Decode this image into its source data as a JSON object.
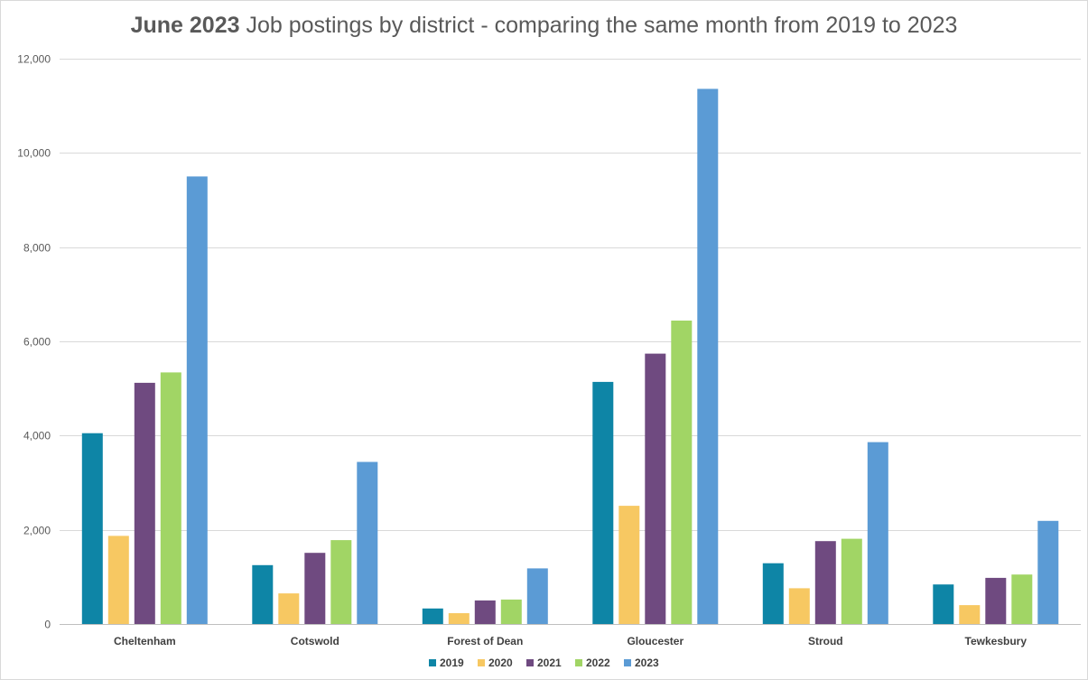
{
  "chart_data": {
    "type": "bar",
    "title_bold": "June 2023",
    "title_rest": " Job postings by district - comparing the same month from 2019 to 2023",
    "xlabel": "",
    "ylabel": "",
    "ylim": [
      0,
      12000
    ],
    "yticks": [
      0,
      2000,
      4000,
      6000,
      8000,
      10000,
      12000
    ],
    "ytick_labels": [
      "0",
      "2,000",
      "4,000",
      "6,000",
      "8,000",
      "10,000",
      "12,000"
    ],
    "grid": true,
    "legend_position": "bottom",
    "categories": [
      "Cheltenham",
      "Cotswold",
      "Forest of Dean",
      "Gloucester",
      "Stroud",
      "Tewkesbury"
    ],
    "series": [
      {
        "name": "2019",
        "color": "#0e85a6",
        "values": [
          4050,
          1250,
          330,
          5140,
          1290,
          840
        ]
      },
      {
        "name": "2020",
        "color": "#f7c862",
        "values": [
          1870,
          650,
          230,
          2510,
          760,
          400
        ]
      },
      {
        "name": "2021",
        "color": "#6f4a80",
        "values": [
          5120,
          1510,
          500,
          5740,
          1760,
          980
        ]
      },
      {
        "name": "2022",
        "color": "#a1d565",
        "values": [
          5340,
          1780,
          520,
          6440,
          1810,
          1050
        ]
      },
      {
        "name": "2023",
        "color": "#5b9bd5",
        "values": [
          9500,
          3440,
          1180,
          11360,
          3860,
          2190
        ]
      }
    ]
  }
}
